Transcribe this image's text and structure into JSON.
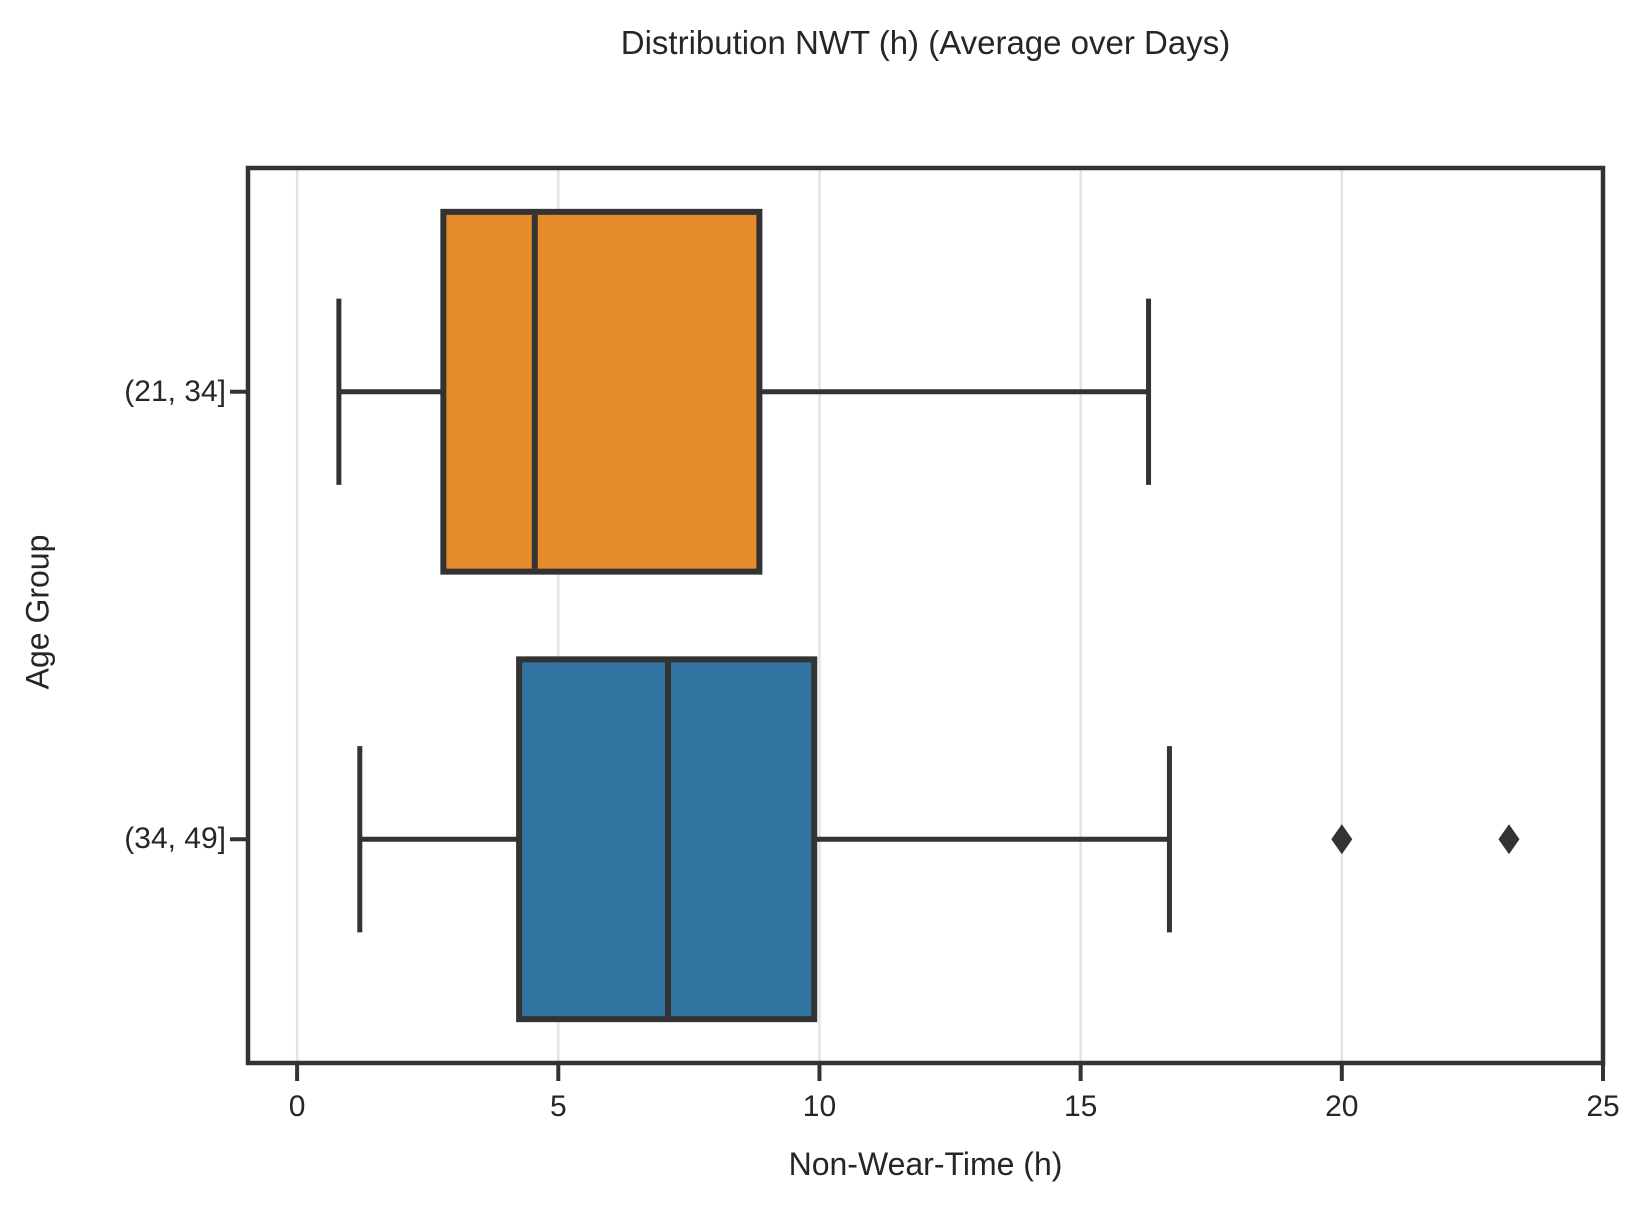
{
  "figure": {
    "title": "Distribution NWT (h) (Average over Days)",
    "xlabel": "Non-Wear-Time (h)",
    "ylabel": "Age Group"
  },
  "chart_data": {
    "type": "boxplot",
    "orientation": "horizontal",
    "title": "Distribution NWT (h) (Average over Days)",
    "xlabel": "Non-Wear-Time (h)",
    "ylabel": "Age Group",
    "xlim": [
      -0.94,
      25
    ],
    "x_ticks": [
      0,
      5,
      10,
      15,
      20,
      25
    ],
    "grid": "vertical-only",
    "legend": "none",
    "categories": [
      "(21, 34]",
      "(34, 49]"
    ],
    "series": [
      {
        "label": "(21, 34]",
        "color": "#e68c2c",
        "whisker_low": 0.8,
        "q1": 2.8,
        "median": 4.55,
        "q3": 8.85,
        "whisker_high": 16.3,
        "outliers": []
      },
      {
        "label": "(34, 49]",
        "color": "#3174a1",
        "whisker_low": 1.2,
        "q1": 4.25,
        "median": 7.1,
        "q3": 9.9,
        "whisker_high": 16.7,
        "outliers": [
          20.0,
          23.2
        ]
      }
    ],
    "colors": {
      "line": "#333333",
      "grid": "#e3e3e3",
      "text": "#262626",
      "background": "#ffffff"
    }
  }
}
